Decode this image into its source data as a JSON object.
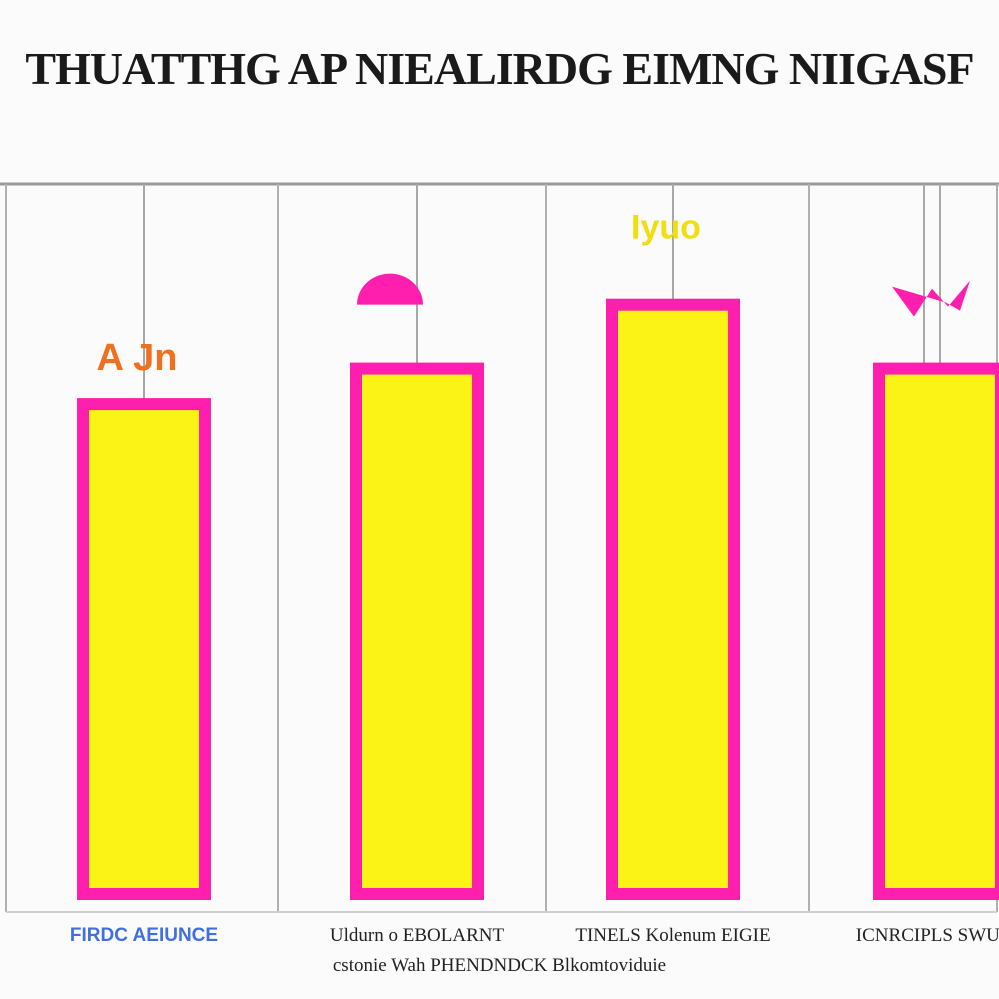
{
  "chart_data": {
    "type": "bar",
    "title": "THUATTHG AP NIEALIRDG EIMNG NIIGASF",
    "categories": [
      "FIRDC AEIUNCE",
      "Uldurn o EBOLARNT",
      "TINELS Kolenum EIGIE",
      "ICNRCIPLS SWUEC"
    ],
    "category_sublabel": "cstonie Wah PHENDNDCK Blkomtoviduie",
    "values": [
      0.69,
      0.74,
      0.83,
      0.74
    ],
    "ylim": [
      0,
      1
    ],
    "data_labels": [
      "A Jn",
      "",
      "Iyuo",
      ""
    ],
    "label_colors": [
      "#f07020",
      "#ff1faf",
      "#f2dd10",
      "#ff1faf"
    ],
    "bar_fill": "#fbf316",
    "bar_stroke": "#ff1faf",
    "grid": true,
    "legend": "none"
  }
}
